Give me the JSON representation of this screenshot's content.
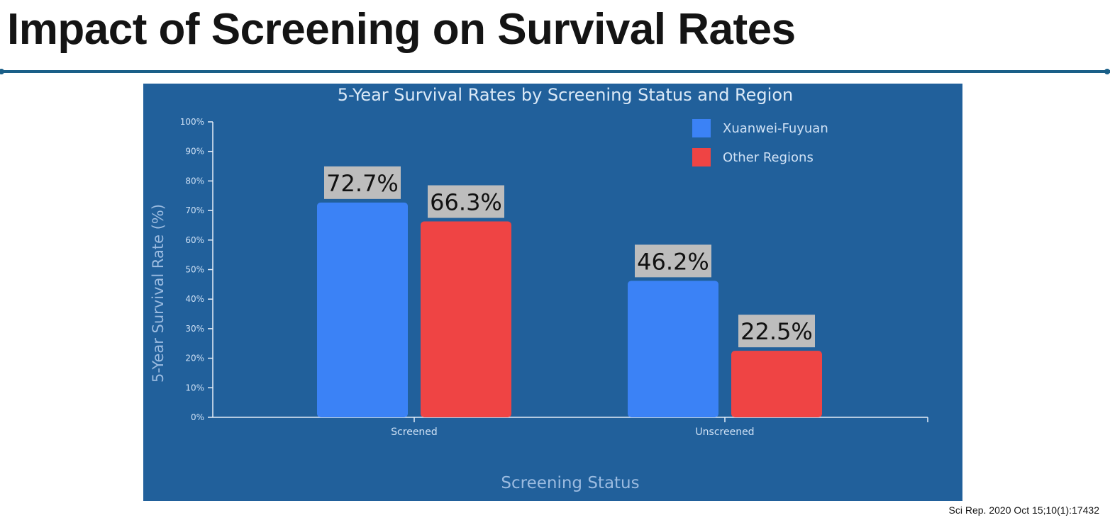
{
  "page": {
    "title": "Impact of Screening on Survival Rates",
    "citation": "Sci Rep. 2020 Oct 15;10(1):17432"
  },
  "colors": {
    "accent_line": "#1a5f88",
    "panel_bg": "#21609b",
    "axis_text": "#cfe1f5",
    "label_box": "#bdbdbd"
  },
  "chart_data": {
    "type": "bar",
    "title": "5-Year Survival Rates by Screening Status and Region",
    "xlabel": "Screening Status",
    "ylabel": "5-Year Survival Rate (%)",
    "categories": [
      "Screened",
      "Unscreened"
    ],
    "series": [
      {
        "name": "Xuanwei-Fuyuan",
        "color": "#3b82f6",
        "values": [
          72.7,
          46.2
        ],
        "labels": [
          "72.7%",
          "46.2%"
        ]
      },
      {
        "name": "Other Regions",
        "color": "#ef4444",
        "values": [
          66.3,
          22.5
        ],
        "labels": [
          "66.3%",
          "22.5%"
        ]
      }
    ],
    "ylim": [
      0,
      100
    ],
    "yticks": [
      "0%",
      "10%",
      "20%",
      "30%",
      "40%",
      "50%",
      "60%",
      "70%",
      "80%",
      "90%",
      "100%"
    ],
    "grid": false,
    "legend_position": "top-right"
  }
}
